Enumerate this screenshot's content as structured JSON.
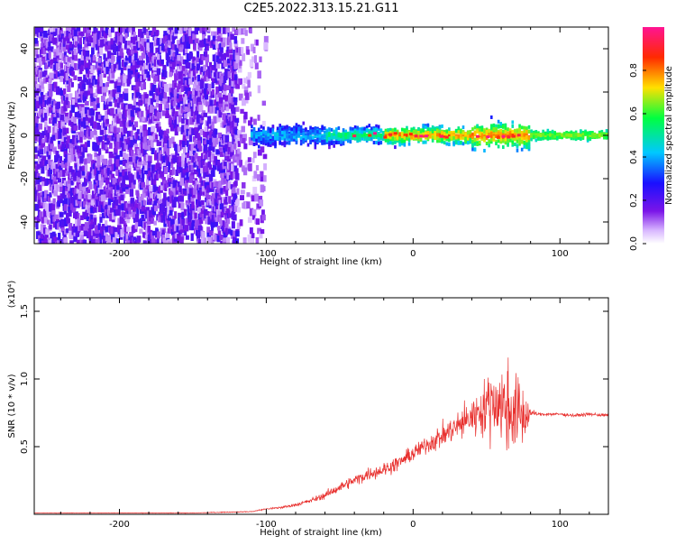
{
  "figure": {
    "title": "C2E5.2022.313.15.21.G11"
  },
  "colors": {
    "snr_line": "#e8302e",
    "noise": "#7b15e8",
    "background": "#ffffff"
  },
  "chart_data": [
    {
      "type": "heatmap",
      "title": "C2E5.2022.313.15.21.G11",
      "xlabel": "Height of straight line (km)",
      "ylabel": "Frequency (Hz)",
      "xlim": [
        -258,
        133
      ],
      "ylim": [
        -50,
        50
      ],
      "x_ticks": [
        -200,
        -100,
        0,
        100
      ],
      "y_ticks": [
        -40,
        -20,
        0,
        20,
        40
      ],
      "colorbar": {
        "label": "Normalized spectral amplitude",
        "range": [
          0,
          1
        ],
        "ticks": [
          "0.0",
          "0.2",
          "0.4",
          "0.6",
          "0.8"
        ],
        "colormap": "rainbow (white-violet-blue-cyan-green-yellow-red-magenta)"
      },
      "grid": false,
      "regions": [
        {
          "x_range": [
            -258,
            -110
          ],
          "description": "broadband noise",
          "amplitude": 0.15
        },
        {
          "x_range": [
            -110,
            -80
          ],
          "description": "noise fading",
          "amplitude": 0.08
        },
        {
          "x_range": [
            -110,
            80
          ],
          "center_freq": 0,
          "bandwidth_hz": 10,
          "peak_amplitude": 1.0
        },
        {
          "x_range": [
            80,
            133
          ],
          "center_freq": 0,
          "bandwidth_hz": 6,
          "peak_amplitude": 0.7
        }
      ]
    },
    {
      "type": "line",
      "xlabel": "Height of straight line (km)",
      "ylabel": "SNR (10 * v/v)",
      "y_multiplier": "(x10⁴)",
      "xlim": [
        -258,
        133
      ],
      "ylim": [
        0,
        1.6
      ],
      "x_ticks": [
        -200,
        -100,
        0,
        100
      ],
      "y_ticks": [
        0.5,
        1.0,
        1.5
      ],
      "grid": false,
      "series": [
        {
          "x": [
            -258,
            -200,
            -150,
            -110,
            -100,
            -90,
            -80,
            -70,
            -60,
            -50,
            -40,
            -30,
            -20,
            -10,
            0,
            10,
            20,
            30,
            40,
            50,
            55,
            60,
            65,
            70,
            75,
            80,
            85,
            90,
            100,
            110,
            120,
            133
          ],
          "y": [
            0.01,
            0.01,
            0.01,
            0.02,
            0.04,
            0.05,
            0.07,
            0.1,
            0.14,
            0.2,
            0.25,
            0.3,
            0.33,
            0.38,
            0.45,
            0.52,
            0.58,
            0.65,
            0.72,
            0.8,
            0.85,
            0.8,
            0.78,
            0.75,
            0.72,
            0.75,
            0.74,
            0.74,
            0.74,
            0.73,
            0.74,
            0.73
          ],
          "noise_amplitude": [
            0.003,
            0.003,
            0.004,
            0.006,
            0.01,
            0.015,
            0.02,
            0.03,
            0.045,
            0.06,
            0.07,
            0.08,
            0.09,
            0.09,
            0.1,
            0.12,
            0.15,
            0.18,
            0.25,
            0.35,
            0.5,
            0.55,
            0.55,
            0.5,
            0.45,
            0.05,
            0.02,
            0.02,
            0.02,
            0.02,
            0.02,
            0.02
          ]
        }
      ]
    }
  ]
}
